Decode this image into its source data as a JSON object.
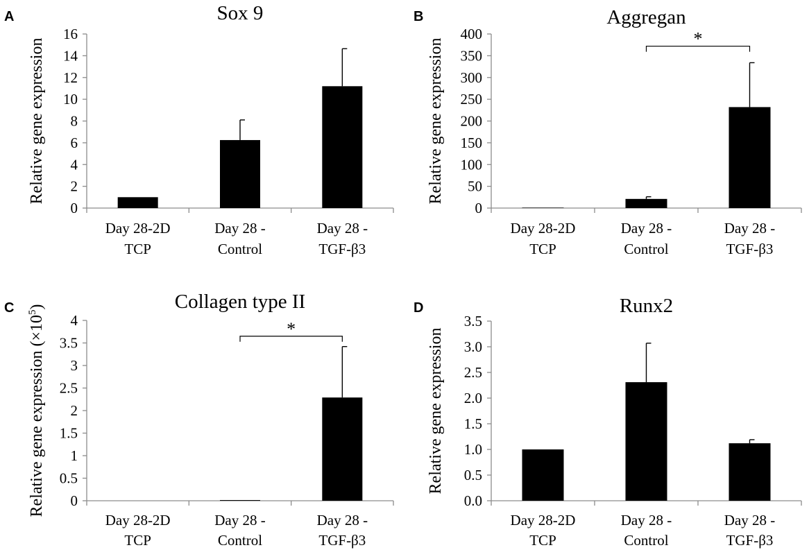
{
  "figure": {
    "panels": [
      {
        "letter": "A"
      },
      {
        "letter": "B"
      },
      {
        "letter": "C"
      },
      {
        "letter": "D"
      }
    ]
  },
  "chart_data": [
    {
      "panel": "A",
      "type": "bar",
      "title": "Sox 9",
      "ylabel": "Relative gene expression",
      "ylabel_sup": "",
      "ylabel_suffix": "",
      "categories": [
        [
          "Day 28-2D",
          "TCP"
        ],
        [
          "Day 28 -",
          "Control"
        ],
        [
          "Day 28 -",
          "TGF-β3"
        ]
      ],
      "values": [
        1.0,
        6.25,
        11.2
      ],
      "errors": [
        0,
        1.85,
        3.45
      ],
      "ylim": [
        0,
        16
      ],
      "yticks": [
        0,
        2,
        4,
        6,
        8,
        10,
        12,
        14,
        16
      ],
      "ytick_labels": [
        "0",
        "2",
        "4",
        "6",
        "8",
        "10",
        "12",
        "14",
        "16"
      ],
      "bar_color": "#000000",
      "significance": []
    },
    {
      "panel": "B",
      "type": "bar",
      "title": "Aggregan",
      "ylabel": "Relative gene expression",
      "ylabel_sup": "",
      "ylabel_suffix": "",
      "categories": [
        [
          "Day 28-2D",
          "TCP"
        ],
        [
          "Day 28 -",
          "Control"
        ],
        [
          "Day 28 -",
          "TGF-β3"
        ]
      ],
      "values": [
        1,
        21,
        232
      ],
      "errors": [
        0,
        5,
        102
      ],
      "ylim": [
        0,
        400
      ],
      "yticks": [
        0,
        50,
        100,
        150,
        200,
        250,
        300,
        350,
        400
      ],
      "ytick_labels": [
        "0",
        "50",
        "100",
        "150",
        "200",
        "250",
        "300",
        "350",
        "400"
      ],
      "bar_color": "#000000",
      "significance": [
        {
          "from": 1,
          "to": 2,
          "level": 372,
          "label": "*"
        }
      ]
    },
    {
      "panel": "C",
      "type": "bar",
      "title": "Collagen type II",
      "ylabel": "Relative gene expression (×10",
      "ylabel_sup": "5",
      "ylabel_suffix": ")",
      "categories": [
        [
          "Day 28-2D",
          "TCP"
        ],
        [
          "Day 28 -",
          "Control"
        ],
        [
          "Day 28 -",
          "TGF-β3"
        ]
      ],
      "values": [
        0.0,
        0.015,
        2.29
      ],
      "errors": [
        0,
        0,
        1.13
      ],
      "ylim": [
        0,
        4
      ],
      "yticks": [
        0,
        0.5,
        1,
        1.5,
        2,
        2.5,
        3,
        3.5,
        4
      ],
      "ytick_labels": [
        "0",
        "0.5",
        "1",
        "1.5",
        "2",
        "2.5",
        "3",
        "3.5",
        "4"
      ],
      "bar_color": "#000000",
      "significance": [
        {
          "from": 1,
          "to": 2,
          "level": 3.65,
          "label": "*"
        }
      ]
    },
    {
      "panel": "D",
      "type": "bar",
      "title": "Runx2",
      "ylabel": "Relative gene expression",
      "ylabel_sup": "",
      "ylabel_suffix": "",
      "categories": [
        [
          "Day 28-2D",
          "TCP"
        ],
        [
          "Day 28 -",
          "Control"
        ],
        [
          "Day 28 -",
          "TGF-β3"
        ]
      ],
      "values": [
        1.0,
        2.31,
        1.12
      ],
      "errors": [
        0,
        0.76,
        0.07
      ],
      "ylim": [
        0,
        3.5
      ],
      "yticks": [
        0,
        0.5,
        1.0,
        1.5,
        2.0,
        2.5,
        3.0,
        3.5
      ],
      "ytick_labels": [
        "0.0",
        "0.5",
        "1.0",
        "1.5",
        "2.0",
        "2.5",
        "3.0",
        "3.5"
      ],
      "bar_color": "#000000",
      "significance": []
    }
  ]
}
